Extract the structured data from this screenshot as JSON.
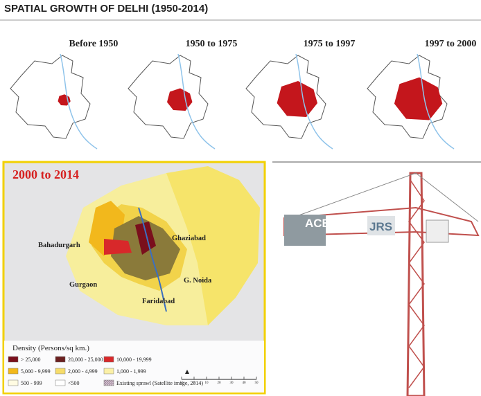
{
  "header": {
    "title": "SPATIAL GROWTH OF DELHI (1950-2014)"
  },
  "panels": [
    "Before 1950",
    "1950 to 1975",
    "1975 to 1997",
    "1997 to 2000"
  ],
  "main_map": {
    "title": "2000 to 2014",
    "places": [
      "Bahadurgarh",
      "Ghaziabad",
      "Gurgaon",
      "G. Noida",
      "Faridabad"
    ],
    "legend": {
      "title": "Density (Persons/sq km.)",
      "items": [
        {
          "label": "> 25,000",
          "color": "#7a0f1c"
        },
        {
          "label": "20,000 - 25,000",
          "color": "#6b2020"
        },
        {
          "label": "10,000 - 19,999",
          "color": "#d8282a"
        },
        {
          "label": "5,000 - 9,999",
          "color": "#f2b81c"
        },
        {
          "label": "2,000 - 4,999",
          "color": "#f6dc6a"
        },
        {
          "label": "1,000 - 1,999",
          "color": "#fbf0a6"
        },
        {
          "label": "500 - 999",
          "color": "#fffbe2"
        },
        {
          "label": "<500",
          "color": "#ffffff"
        },
        {
          "label": "Existing sprawl (Satellite image, 2014)",
          "color": "#b8a4b4"
        }
      ]
    },
    "scale": [
      10,
      0,
      10,
      20,
      30,
      40,
      50
    ]
  },
  "photo": {
    "signs": [
      "ACE",
      "JRS"
    ]
  }
}
